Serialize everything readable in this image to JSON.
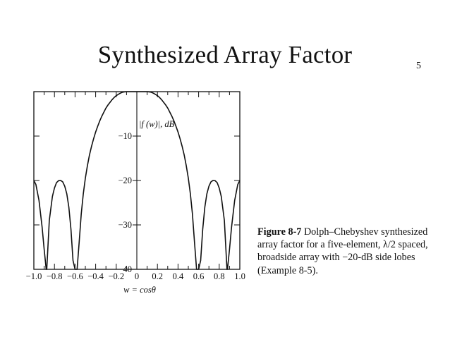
{
  "slide": {
    "title": "Synthesized Array Factor",
    "page_number": "5"
  },
  "caption": {
    "label": "Figure 8-7",
    "text": " Dolph–Chebyshev synthesized array factor for a five-element, λ/2 spaced, broadside array with −20-dB side lobes (Example 8-5)."
  },
  "chart_data": {
    "type": "line",
    "title": "",
    "xlabel": "w = cosθ",
    "ylabel": "|f (w)|, dB",
    "xlim": [
      -1.0,
      1.0
    ],
    "ylim": [
      -40,
      0
    ],
    "x_ticks": [
      "−1.0",
      "−0.8",
      "−0.6",
      "−0.4",
      "−0.2",
      "0",
      "0.2",
      "0.4",
      "0.6",
      "0.8",
      "1.0"
    ],
    "y_ticks": [
      "−10",
      "−20",
      "−30",
      "−40"
    ],
    "grid": false,
    "series": [
      {
        "x": [
          -1.0,
          -0.98,
          -0.95,
          -0.92,
          -0.9,
          -0.88,
          -0.875,
          -0.85,
          -0.82,
          -0.8,
          -0.78,
          -0.76,
          -0.74,
          -0.72,
          -0.7,
          -0.68,
          -0.66,
          -0.64,
          -0.62,
          -0.6,
          -0.58,
          -0.56,
          -0.54,
          -0.52,
          -0.5,
          -0.48,
          -0.46,
          -0.44,
          -0.42,
          -0.4,
          -0.38,
          -0.36,
          -0.34,
          -0.32,
          -0.3,
          -0.28,
          -0.26,
          -0.24,
          -0.22,
          -0.2,
          -0.18,
          -0.16,
          -0.14,
          -0.12,
          -0.1,
          -0.08,
          -0.06,
          -0.04,
          -0.02,
          0.0,
          0.02,
          0.04,
          0.06,
          0.08,
          0.1,
          0.12,
          0.14,
          0.16,
          0.18,
          0.2,
          0.22,
          0.24,
          0.26,
          0.28,
          0.3,
          0.32,
          0.34,
          0.36,
          0.38,
          0.4,
          0.42,
          0.44,
          0.46,
          0.48,
          0.5,
          0.52,
          0.54,
          0.56,
          0.58,
          0.6,
          0.62,
          0.64,
          0.66,
          0.68,
          0.7,
          0.72,
          0.74,
          0.76,
          0.78,
          0.8,
          0.82,
          0.85,
          0.875,
          0.88,
          0.9,
          0.92,
          0.95,
          0.98,
          1.0
        ],
        "y": [
          -20.0,
          -20.9,
          -24.5,
          -30.5,
          -35.5,
          -40.0,
          -40.0,
          -29.0,
          -23.6,
          -21.7,
          -20.5,
          -20.05,
          -20.0,
          -20.3,
          -21.3,
          -23.0,
          -26.0,
          -31.0,
          -38.0,
          -40.0,
          -40.0,
          -34.0,
          -27.5,
          -23.0,
          -19.5,
          -16.7,
          -14.3,
          -12.3,
          -10.6,
          -9.1,
          -7.8,
          -6.6,
          -5.5,
          -4.6,
          -3.7,
          -3.0,
          -2.4,
          -1.8,
          -1.3,
          -0.9,
          -0.6,
          -0.35,
          -0.15,
          -0.05,
          0.0,
          0.0,
          0.0,
          0.0,
          0.0,
          0.0,
          0.0,
          0.0,
          0.0,
          0.0,
          0.0,
          -0.05,
          -0.15,
          -0.35,
          -0.6,
          -0.9,
          -1.3,
          -1.8,
          -2.4,
          -3.0,
          -3.7,
          -4.6,
          -5.5,
          -6.6,
          -7.8,
          -9.1,
          -10.6,
          -12.3,
          -14.3,
          -16.7,
          -19.5,
          -23.0,
          -27.5,
          -34.0,
          -40.0,
          -40.0,
          -38.0,
          -31.0,
          -26.0,
          -23.0,
          -21.3,
          -20.3,
          -20.0,
          -20.05,
          -20.5,
          -21.7,
          -23.6,
          -29.0,
          -40.0,
          -40.0,
          -35.5,
          -30.5,
          -24.5,
          -20.9,
          -20.0
        ]
      }
    ]
  }
}
